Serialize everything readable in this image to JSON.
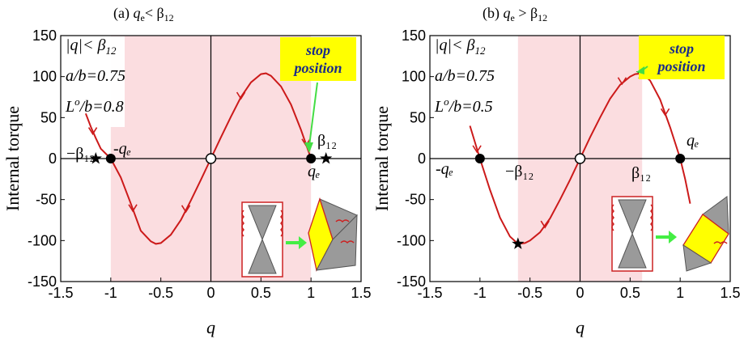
{
  "chart_data": [
    {
      "type": "line",
      "title": "(a)  qₑ< β₁₂",
      "title_parts": {
        "prefix": "(a)  ",
        "var": "q",
        "sub": "e",
        "rel": "< β",
        "sub2": "12"
      },
      "xlabel": "q",
      "ylabel": "Internal torque",
      "xlim": [
        -1.5,
        1.5
      ],
      "ylim": [
        -150,
        150
      ],
      "xticks": [
        "-1.5",
        "-1",
        "-0.5",
        "0",
        "0.5",
        "1",
        "1.5"
      ],
      "yticks": [
        "150",
        "100",
        "50",
        "0",
        "-50",
        "-100",
        "-150"
      ],
      "shaded_region": [
        -1.0,
        1.0
      ],
      "series": [
        {
          "color": "#cc1a1a",
          "points": [
            [
              -1.25,
              55
            ],
            [
              -1.2,
              39
            ],
            [
              -1.15,
              25
            ],
            [
              -1.1,
              12
            ],
            [
              -1.0,
              0
            ],
            [
              -0.9,
              -23
            ],
            [
              -0.8,
              -55
            ],
            [
              -0.7,
              -88
            ],
            [
              -0.6,
              -101
            ],
            [
              -0.55,
              -104
            ],
            [
              -0.5,
              -103
            ],
            [
              -0.4,
              -93
            ],
            [
              -0.3,
              -75
            ],
            [
              -0.2,
              -51
            ],
            [
              -0.1,
              -26
            ],
            [
              0.0,
              0
            ],
            [
              0.1,
              26
            ],
            [
              0.2,
              51
            ],
            [
              0.3,
              75
            ],
            [
              0.4,
              93
            ],
            [
              0.5,
              103
            ],
            [
              0.55,
              104
            ],
            [
              0.6,
              101
            ],
            [
              0.7,
              88
            ],
            [
              0.8,
              66
            ],
            [
              0.9,
              35
            ],
            [
              1.0,
              0
            ]
          ]
        }
      ],
      "markers": [
        {
          "kind": "star",
          "x": -1.15,
          "y": 0
        },
        {
          "kind": "filled",
          "x": -1.0,
          "y": 0
        },
        {
          "kind": "open",
          "x": 0.0,
          "y": 0
        },
        {
          "kind": "filled",
          "x": 1.0,
          "y": 0
        },
        {
          "kind": "star",
          "x": 1.15,
          "y": 0
        }
      ],
      "annotations": {
        "box_line1": "|q|< β₁₂",
        "box_line1_parts": {
          "text": "|q|< β",
          "sub": "12"
        },
        "box_line2": "a/b=0.75",
        "box_line3": "Lᵒ/b=0.8",
        "box_line3_parts": {
          "L": "L",
          "sup": "o",
          "rest": "/b=0.8"
        },
        "neg_qe": "-qₑ",
        "neg_beta": "−β₁₂",
        "qe": "qₑ",
        "beta": "β₁₂",
        "stop_line1": "stop",
        "stop_line2": "position"
      }
    },
    {
      "type": "line",
      "title": "(b)  qₑ > β₁₂",
      "title_parts": {
        "prefix": "(b)  ",
        "var": "q",
        "sub": "e",
        "rel": " > β",
        "sub2": "12"
      },
      "xlabel": "q",
      "ylabel": "Internal torque",
      "xlim": [
        -1.5,
        1.5
      ],
      "ylim": [
        -150,
        150
      ],
      "xticks": [
        "-1.5",
        "-1",
        "-0.5",
        "0",
        "0.5",
        "1",
        "1.5"
      ],
      "yticks": [
        "150",
        "100",
        "50",
        "0",
        "-50",
        "-100",
        "-150"
      ],
      "shaded_region": [
        -0.62,
        0.62
      ],
      "series": [
        {
          "color": "#cc1a1a",
          "points": [
            [
              -1.1,
              40
            ],
            [
              -1.0,
              0
            ],
            [
              -0.9,
              -38
            ],
            [
              -0.8,
              -72
            ],
            [
              -0.7,
              -95
            ],
            [
              -0.62,
              -104
            ],
            [
              -0.55,
              -103
            ],
            [
              -0.5,
              -100
            ],
            [
              -0.4,
              -90
            ],
            [
              -0.3,
              -73
            ],
            [
              -0.2,
              -50
            ],
            [
              -0.1,
              -26
            ],
            [
              0.0,
              0
            ],
            [
              0.1,
              26
            ],
            [
              0.2,
              50
            ],
            [
              0.3,
              73
            ],
            [
              0.4,
              90
            ],
            [
              0.5,
              100
            ],
            [
              0.55,
              103
            ],
            [
              0.62,
              104
            ],
            [
              0.7,
              95
            ],
            [
              0.8,
              72
            ],
            [
              0.9,
              38
            ],
            [
              1.0,
              0
            ],
            [
              1.05,
              -25
            ],
            [
              1.1,
              -55
            ]
          ]
        }
      ],
      "markers": [
        {
          "kind": "filled",
          "x": -1.0,
          "y": 0
        },
        {
          "kind": "open",
          "x": 0.0,
          "y": 0
        },
        {
          "kind": "filled",
          "x": 1.0,
          "y": 0
        },
        {
          "kind": "star",
          "x": -0.62,
          "y": -104
        },
        {
          "kind": "star",
          "x": 0.62,
          "y": 104
        }
      ],
      "annotations": {
        "box_line1": "|q|< β₁₂",
        "box_line1_parts": {
          "text": "|q|< β",
          "sub": "12"
        },
        "box_line2": "a/b=0.75",
        "box_line3": "Lᵒ/b=0.5",
        "box_line3_parts": {
          "L": "L",
          "sup": "o",
          "rest": "/b=0.5"
        },
        "neg_qe": "-qₑ",
        "neg_beta": "−β₁₂",
        "qe": "qₑ",
        "beta": "β₁₂",
        "stop_line1": "stop",
        "stop_line2": "position"
      }
    }
  ]
}
